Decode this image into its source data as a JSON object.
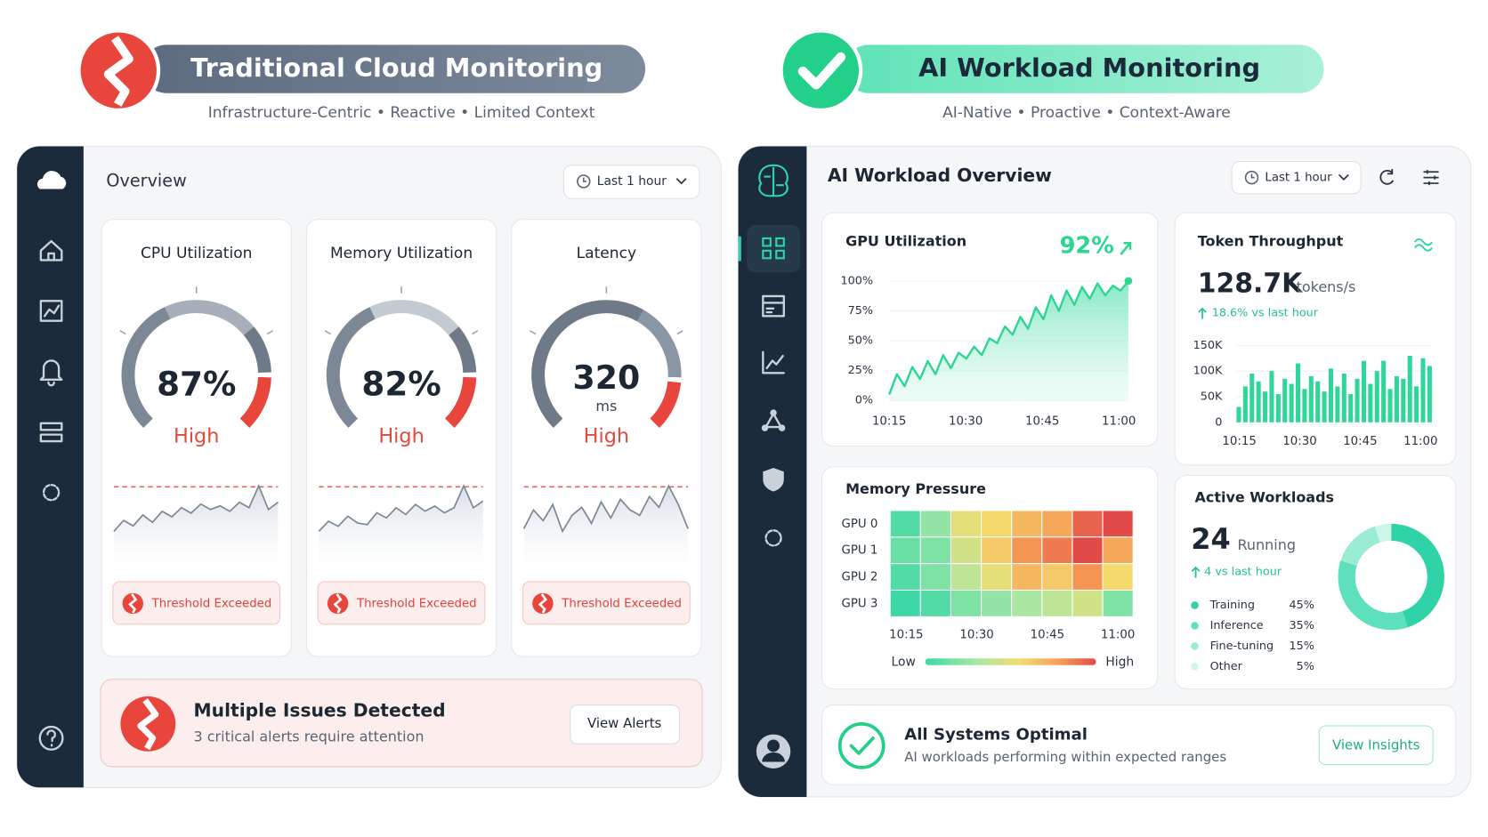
{
  "left": {
    "banner": {
      "title": "Traditional Cloud Monitoring",
      "subtitle": "Infrastructure-Centric • Reactive • Limited Context"
    },
    "header": {
      "title": "Overview",
      "time_range": "Last 1 hour"
    },
    "metrics": [
      {
        "title": "CPU Utilization",
        "value": 87,
        "value_label": "87%",
        "status": "High",
        "badge": "Threshold Exceeded",
        "sparkline": [
          20,
          32,
          26,
          38,
          30,
          42,
          36,
          46,
          40,
          50,
          44,
          48,
          42,
          52,
          46,
          70,
          44,
          52
        ]
      },
      {
        "title": "Memory Utilization",
        "value": 82,
        "value_label": "82%",
        "status": "High",
        "badge": "Threshold Exceeded",
        "sparkline": [
          18,
          30,
          24,
          36,
          28,
          26,
          40,
          34,
          46,
          38,
          50,
          42,
          48,
          40,
          46,
          72,
          46,
          54
        ]
      },
      {
        "title": "Latency",
        "value": 320,
        "unit": "ms",
        "status": "High",
        "badge": "Threshold Exceeded",
        "sparkline": [
          30,
          44,
          36,
          48,
          28,
          40,
          46,
          34,
          50,
          38,
          52,
          44,
          40,
          54,
          46,
          62,
          48,
          30
        ]
      }
    ],
    "alert": {
      "title": "Multiple Issues Detected",
      "message": "3 critical alerts require attention",
      "button": "View Alerts"
    }
  },
  "right": {
    "banner": {
      "title": "AI Workload Monitoring",
      "subtitle": "AI-Native • Proactive • Context-Aware"
    },
    "header": {
      "title": "AI Workload Overview",
      "time_range": "Last 1 hour"
    },
    "gpu": {
      "title": "GPU Utilization",
      "value": 92,
      "value_label": "92%",
      "color": "#2bd68f",
      "ylim": [
        0,
        100
      ],
      "yticks": [
        {
          "value": 0,
          "label": "0%"
        },
        {
          "value": 25,
          "label": "25%"
        },
        {
          "value": 50,
          "label": "50%"
        },
        {
          "value": 75,
          "label": "75%"
        },
        {
          "value": 100,
          "label": "100%"
        }
      ],
      "x_labels": [
        "10:15",
        "10:30",
        "10:45",
        "11:00"
      ],
      "values": [
        5,
        22,
        12,
        28,
        18,
        33,
        22,
        38,
        27,
        40,
        35,
        45,
        38,
        52,
        48,
        62,
        55,
        70,
        60,
        78,
        68,
        88,
        75,
        92,
        80,
        95,
        85,
        98,
        88,
        96,
        92,
        100
      ]
    },
    "throughput": {
      "title": "Token Throughput",
      "value": 128700,
      "value_label": "128.7K",
      "unit": "tokens/s",
      "change": "18.6% vs last hour",
      "color": "#2fd69a",
      "ylim": [
        0,
        150000
      ],
      "yticks": [
        0,
        {
          "value": 50000,
          "label": "50K"
        },
        {
          "value": 100000,
          "label": "100K"
        },
        {
          "value": 150000,
          "label": "150K"
        }
      ],
      "x_labels": [
        "10:15",
        "10:30",
        "10:45",
        "11:00"
      ],
      "values": [
        30000,
        70000,
        95000,
        80000,
        60000,
        100000,
        55000,
        85000,
        75000,
        115000,
        65000,
        90000,
        80000,
        60000,
        105000,
        70000,
        95000,
        55000,
        85000,
        120000,
        75000,
        100000,
        120000,
        65000,
        90000,
        85000,
        130000,
        70000,
        125000,
        110000
      ]
    },
    "memory": {
      "title": "Memory Pressure",
      "rows": [
        {
          "label": "GPU 0",
          "values": [
            20,
            35,
            55,
            60,
            70,
            75,
            90,
            95
          ]
        },
        {
          "label": "GPU 1",
          "values": [
            25,
            30,
            50,
            65,
            80,
            85,
            95,
            75
          ]
        },
        {
          "label": "GPU 2",
          "values": [
            20,
            30,
            45,
            55,
            70,
            65,
            80,
            60
          ]
        },
        {
          "label": "GPU 3",
          "values": [
            15,
            20,
            30,
            35,
            40,
            45,
            50,
            30
          ]
        }
      ],
      "x_labels": [
        "10:15",
        "10:30",
        "10:45",
        "11:00"
      ],
      "legend_low": "Low",
      "legend_high": "High"
    },
    "workloads": {
      "title": "Active Workloads",
      "count": 24,
      "count_label": "Running",
      "change": "4 vs last hour",
      "items": [
        {
          "name": "Training",
          "value": 45,
          "label": "45%",
          "color": "#2fd3a7"
        },
        {
          "name": "Inference",
          "value": 35,
          "label": "35%",
          "color": "#5fe0bc"
        },
        {
          "name": "Fine-tuning",
          "value": 15,
          "label": "15%",
          "color": "#9aedd4"
        },
        {
          "name": "Other",
          "value": 5,
          "label": "5%",
          "color": "#cdf5e8"
        }
      ]
    },
    "status": {
      "title": "All Systems Optimal",
      "message": "AI workloads performing within expected ranges",
      "button": "View Insights"
    }
  }
}
